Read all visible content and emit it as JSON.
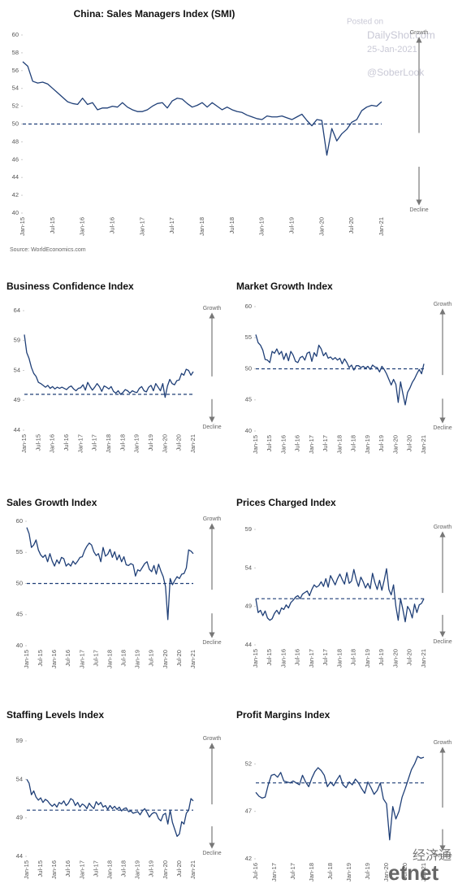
{
  "chart_data": [
    {
      "type": "line",
      "title": "China: Sales Managers Index (SMI)",
      "source": "Source: WorldEconomics.com",
      "growth_label": "Growth",
      "decline_label": "Decline",
      "color": "#1f3f77",
      "reference_line": 50,
      "categories": [
        "Jan-15",
        null,
        null,
        null,
        null,
        null,
        "Jul-15",
        null,
        null,
        null,
        null,
        null,
        "Jan-16",
        null,
        null,
        null,
        null,
        null,
        "Jul-16",
        null,
        null,
        null,
        null,
        null,
        "Jan-17",
        null,
        null,
        null,
        null,
        null,
        "Jul-17",
        null,
        null,
        null,
        null,
        null,
        "Jan-18",
        null,
        null,
        null,
        null,
        null,
        "Jul-18",
        null,
        null,
        null,
        null,
        null,
        "Jan-19",
        null,
        null,
        null,
        null,
        null,
        "Jul-19",
        null,
        null,
        null,
        null,
        null,
        "Jan-20",
        null,
        null,
        null,
        null,
        null,
        "Jul-20",
        null,
        null,
        null,
        null,
        null,
        "Jan-21"
      ],
      "values": [
        57,
        56.5,
        54.8,
        54.6,
        54.7,
        54.5,
        54.0,
        53.5,
        53.0,
        52.5,
        52.3,
        52.2,
        52.9,
        52.2,
        52.4,
        51.6,
        51.8,
        51.8,
        52.0,
        51.9,
        52.4,
        51.9,
        51.6,
        51.4,
        51.4,
        51.6,
        52.0,
        52.3,
        52.4,
        51.8,
        52.6,
        52.9,
        52.8,
        52.3,
        51.9,
        52.1,
        52.4,
        51.9,
        52.4,
        52.0,
        51.6,
        51.9,
        51.6,
        51.4,
        51.3,
        51.0,
        50.8,
        50.6,
        50.5,
        50.9,
        50.8,
        50.8,
        50.9,
        50.7,
        50.5,
        50.8,
        51.1,
        50.4,
        49.8,
        50.5,
        50.4,
        46.5,
        49.5,
        48.1,
        48.9,
        49.4,
        50.2,
        50.5,
        51.5,
        51.9,
        52.1,
        52.0,
        52.5
      ],
      "ylim": [
        40,
        60
      ],
      "yticks": [
        40,
        42,
        44,
        46,
        48,
        50,
        52,
        54,
        56,
        58,
        60
      ]
    },
    {
      "type": "line",
      "title": "Business Confidence Index",
      "growth_label": "Growth",
      "decline_label": "Decline",
      "color": "#1f3f77",
      "reference_line": 50,
      "categories": [
        "Jan-15",
        null,
        null,
        null,
        null,
        null,
        "Jul-15",
        null,
        null,
        null,
        null,
        null,
        "Jan-16",
        null,
        null,
        null,
        null,
        null,
        "Jul-16",
        null,
        null,
        null,
        null,
        null,
        "Jan-17",
        null,
        null,
        null,
        null,
        null,
        "Jul-17",
        null,
        null,
        null,
        null,
        null,
        "Jan-18",
        null,
        null,
        null,
        null,
        null,
        "Jul-18",
        null,
        null,
        null,
        null,
        null,
        "Jan-19",
        null,
        null,
        null,
        null,
        null,
        "Jul-19",
        null,
        null,
        null,
        null,
        null,
        "Jan-20",
        null,
        null,
        null,
        null,
        null,
        "Jul-20",
        null,
        null,
        null,
        null,
        null,
        "Jan-21"
      ],
      "values": [
        60,
        57,
        56,
        54.5,
        53.5,
        53,
        52,
        51.8,
        51.5,
        51.2,
        51.5,
        51.0,
        51.3,
        50.9,
        51.2,
        51.0,
        51.2,
        51.0,
        50.8,
        51.2,
        51.4,
        50.9,
        50.6,
        51.0,
        51.1,
        51.6,
        50.7,
        52.0,
        51.3,
        50.7,
        51.2,
        51.8,
        51.3,
        50.5,
        51.4,
        51.2,
        50.9,
        51.3,
        50.5,
        50.2,
        50.6,
        50.0,
        50.3,
        50.8,
        50.6,
        50.2,
        50.6,
        50.4,
        50.3,
        51.0,
        51.3,
        50.6,
        50.4,
        51.2,
        51.5,
        50.6,
        51.8,
        51.2,
        50.6,
        51.8,
        49.5,
        51.4,
        52.5,
        51.8,
        51.6,
        52.3,
        52.4,
        53.5,
        53.2,
        54.2,
        54.0,
        53.2,
        53.8
      ],
      "ylim": [
        44,
        64
      ],
      "yticks": [
        44,
        49,
        54,
        59,
        64
      ]
    },
    {
      "type": "line",
      "title": "Market Growth Index",
      "growth_label": "Growth",
      "decline_label": "Decline",
      "color": "#1f3f77",
      "reference_line": 50,
      "categories": [
        "Jan-15",
        null,
        null,
        null,
        null,
        null,
        "Jul-15",
        null,
        null,
        null,
        null,
        null,
        "Jan-16",
        null,
        null,
        null,
        null,
        null,
        "Jul-16",
        null,
        null,
        null,
        null,
        null,
        "Jan-17",
        null,
        null,
        null,
        null,
        null,
        "Jul-17",
        null,
        null,
        null,
        null,
        null,
        "Jan-18",
        null,
        null,
        null,
        null,
        null,
        "Jul-18",
        null,
        null,
        null,
        null,
        null,
        "Jan-19",
        null,
        null,
        null,
        null,
        null,
        "Jul-19",
        null,
        null,
        null,
        null,
        null,
        "Jan-20",
        null,
        null,
        null,
        null,
        null,
        "Jul-20",
        null,
        null,
        null,
        null,
        null,
        "Jan-21"
      ],
      "values": [
        55.5,
        54.2,
        53.8,
        53,
        51.5,
        51.4,
        51.0,
        52.8,
        52.5,
        53.2,
        52.3,
        52.8,
        51.5,
        52.5,
        51.3,
        52.8,
        52.2,
        51.2,
        51.0,
        51.8,
        52.0,
        51.4,
        52.5,
        52.7,
        51.2,
        52.6,
        52.0,
        53.8,
        53.2,
        52.1,
        52.6,
        51.7,
        51.9,
        51.5,
        51.8,
        51.4,
        51.7,
        50.8,
        51.6,
        51.0,
        50.2,
        50.6,
        49.8,
        50.5,
        50.5,
        50.2,
        50.4,
        50.1,
        50.4,
        49.9,
        50.6,
        50.3,
        50.2,
        49.5,
        50.4,
        49.9,
        49.2,
        48.3,
        47.4,
        48.3,
        47.5,
        44.6,
        47.9,
        46.0,
        44.2,
        46.2,
        46.9,
        47.8,
        48.4,
        49.2,
        49.9,
        49.2,
        50.8
      ],
      "ylim": [
        40,
        60
      ],
      "yticks": [
        40,
        45,
        50,
        55,
        60
      ]
    },
    {
      "type": "line",
      "title": "Sales Growth Index",
      "growth_label": "Growth",
      "decline_label": "Decline",
      "color": "#1f3f77",
      "reference_line": 50,
      "categories": [
        "Jan-15",
        null,
        null,
        null,
        null,
        null,
        "Jul-15",
        null,
        null,
        null,
        null,
        null,
        "Jan-16",
        null,
        null,
        null,
        null,
        null,
        "Jul-16",
        null,
        null,
        null,
        null,
        null,
        "Jan-17",
        null,
        null,
        null,
        null,
        null,
        "Jul-17",
        null,
        null,
        null,
        null,
        null,
        "Jan-18",
        null,
        null,
        null,
        null,
        null,
        "Jul-18",
        null,
        null,
        null,
        null,
        null,
        "Jan-19",
        null,
        null,
        null,
        null,
        null,
        "Jul-19",
        null,
        null,
        null,
        null,
        null,
        "Jan-20",
        null,
        null,
        null,
        null,
        null,
        "Jul-20",
        null,
        null,
        null,
        null,
        null,
        "Jan-21"
      ],
      "values": [
        59,
        58,
        55.8,
        56.2,
        57,
        55.4,
        54.6,
        54.2,
        54.6,
        53.5,
        54.8,
        53.6,
        52.8,
        53.8,
        53.2,
        54.2,
        54.0,
        52.8,
        53.2,
        52.8,
        53.6,
        53.1,
        53.6,
        54.2,
        54.3,
        55.3,
        56.0,
        56.5,
        56.2,
        55.1,
        54.5,
        54.8,
        53.5,
        55.8,
        54.4,
        54.7,
        55.5,
        54.2,
        55.1,
        53.8,
        54.6,
        53.5,
        54.3,
        53.0,
        52.9,
        53.2,
        53.0,
        51.2,
        52.2,
        52.0,
        52.6,
        53.2,
        53.5,
        52.3,
        51.9,
        52.9,
        51.5,
        53.1,
        52.0,
        51.1,
        49.5,
        44.2,
        50.8,
        49.8,
        50.5,
        51.1,
        50.8,
        51.5,
        51.6,
        52.5,
        55.4,
        55.2,
        54.8
      ],
      "ylim": [
        40,
        60
      ],
      "yticks": [
        40,
        45,
        50,
        55,
        60
      ]
    },
    {
      "type": "line",
      "title": "Prices Charged Index",
      "growth_label": "Growth",
      "decline_label": "Decline",
      "color": "#1f3f77",
      "reference_line": 50,
      "categories": [
        "Jan-15",
        null,
        null,
        null,
        null,
        null,
        "Jul-15",
        null,
        null,
        null,
        null,
        null,
        "Jan-16",
        null,
        null,
        null,
        null,
        null,
        "Jul-16",
        null,
        null,
        null,
        null,
        null,
        "Jan-17",
        null,
        null,
        null,
        null,
        null,
        "Jul-17",
        null,
        null,
        null,
        null,
        null,
        "Jan-18",
        null,
        null,
        null,
        null,
        null,
        "Jul-18",
        null,
        null,
        null,
        null,
        null,
        "Jan-19",
        null,
        null,
        null,
        null,
        null,
        "Jul-19",
        null,
        null,
        null,
        null,
        null,
        "Jan-20",
        null,
        null,
        null,
        null,
        null,
        "Jul-20",
        null,
        null,
        null,
        null,
        null,
        "Jan-21"
      ],
      "values": [
        50,
        48.2,
        48.5,
        47.8,
        48.4,
        47.5,
        47.2,
        47.4,
        48.1,
        48.5,
        48.0,
        48.8,
        48.6,
        49.2,
        48.8,
        49.5,
        49.8,
        50.2,
        50.4,
        50.0,
        50.6,
        50.8,
        51.0,
        50.4,
        51.2,
        51.8,
        51.5,
        51.7,
        52.2,
        51.6,
        52.6,
        51.5,
        53.0,
        52.4,
        51.8,
        52.6,
        53.2,
        52.5,
        51.9,
        53.4,
        52.0,
        52.3,
        53.8,
        52.5,
        51.6,
        52.8,
        52.2,
        51.4,
        52.0,
        51.3,
        53.3,
        52.1,
        51.2,
        52.4,
        51.1,
        52.4,
        53.9,
        51.2,
        50.5,
        51.8,
        49.0,
        47.2,
        50.0,
        48.6,
        47.0,
        49.0,
        48.5,
        47.5,
        49.3,
        48.2,
        49.2,
        49.4,
        50.0
      ],
      "ylim": [
        44,
        59
      ],
      "yticks": [
        44,
        49,
        54,
        59
      ]
    },
    {
      "type": "line",
      "title": "Staffing Levels Index",
      "growth_label": "Growth",
      "decline_label": "Decline",
      "color": "#1f3f77",
      "reference_line": 50,
      "categories": [
        "Jan-15",
        null,
        null,
        null,
        null,
        null,
        "Jul-15",
        null,
        null,
        null,
        null,
        null,
        "Jan-16",
        null,
        null,
        null,
        null,
        null,
        "Jul-16",
        null,
        null,
        null,
        null,
        null,
        "Jan-17",
        null,
        null,
        null,
        null,
        null,
        "Jul-17",
        null,
        null,
        null,
        null,
        null,
        "Jan-18",
        null,
        null,
        null,
        null,
        null,
        "Jul-18",
        null,
        null,
        null,
        null,
        null,
        "Jan-19",
        null,
        null,
        null,
        null,
        null,
        "Jul-19",
        null,
        null,
        null,
        null,
        null,
        "Jan-20",
        null,
        null,
        null,
        null,
        null,
        "Jul-20",
        null,
        null,
        null,
        null,
        null,
        "Jan-21"
      ],
      "values": [
        54,
        53.5,
        52.0,
        52.5,
        51.7,
        51.3,
        51.6,
        51.0,
        51.4,
        51.2,
        50.8,
        50.5,
        50.8,
        50.4,
        51.0,
        50.8,
        51.2,
        50.6,
        50.9,
        51.5,
        51.3,
        50.6,
        51.0,
        50.4,
        50.8,
        50.6,
        50.2,
        50.9,
        50.5,
        50.2,
        51.1,
        50.7,
        51.0,
        50.4,
        50.6,
        50.1,
        50.6,
        50.2,
        50.5,
        50.1,
        50.4,
        49.9,
        50.2,
        50.3,
        49.8,
        49.9,
        49.6,
        49.7,
        49.8,
        49.4,
        49.9,
        50.2,
        49.7,
        49.1,
        49.5,
        49.7,
        49.6,
        48.9,
        48.6,
        49.4,
        49.6,
        48.2,
        50.0,
        48.4,
        47.5,
        46.6,
        46.9,
        48.5,
        48.2,
        49.6,
        50.0,
        51.5,
        51.2
      ],
      "ylim": [
        44,
        59
      ],
      "yticks": [
        44,
        49,
        54,
        59
      ]
    },
    {
      "type": "line",
      "title": "Profit Margins Index",
      "growth_label": "Growth",
      "decline_label": "Decline",
      "color": "#1f3f77",
      "reference_line": 50,
      "categories": [
        "Jul-16",
        null,
        null,
        null,
        null,
        null,
        "Jan-17",
        null,
        null,
        null,
        null,
        null,
        "Jul-17",
        null,
        null,
        null,
        null,
        null,
        "Jan-18",
        null,
        null,
        null,
        null,
        null,
        "Jul-18",
        null,
        null,
        null,
        null,
        null,
        "Jan-19",
        null,
        null,
        null,
        null,
        null,
        "Jul-19",
        null,
        null,
        null,
        null,
        null,
        "Jan-20",
        null,
        null,
        null,
        null,
        null,
        "Jul-20",
        null,
        null,
        null,
        null,
        null,
        "Jan-21"
      ],
      "values": [
        49,
        48.6,
        48.4,
        48.5,
        49.8,
        50.8,
        50.9,
        50.6,
        51.1,
        50.2,
        50.1,
        50.0,
        50.2,
        50.0,
        49.8,
        50.8,
        50.1,
        49.6,
        50.5,
        51.2,
        51.6,
        51.3,
        50.8,
        49.6,
        50.1,
        49.7,
        50.3,
        50.8,
        49.8,
        49.5,
        50.1,
        49.8,
        50.4,
        50.0,
        49.4,
        48.9,
        50.1,
        49.5,
        48.8,
        49.2,
        50.0,
        48.3,
        47.8,
        44.0,
        47.5,
        46.2,
        47.0,
        48.5,
        49.4,
        50.4,
        51.4,
        52.0,
        52.8,
        52.6,
        52.7
      ],
      "ylim": [
        42,
        54
      ],
      "yticks": [
        42,
        47,
        52
      ]
    }
  ],
  "watermark": {
    "posted": "Posted on",
    "site": "DailyShot.com",
    "date": "25-Jan-2021",
    "handle": "@SoberLook"
  },
  "logo": {
    "chinese": "经济通",
    "latin": "etnet"
  }
}
